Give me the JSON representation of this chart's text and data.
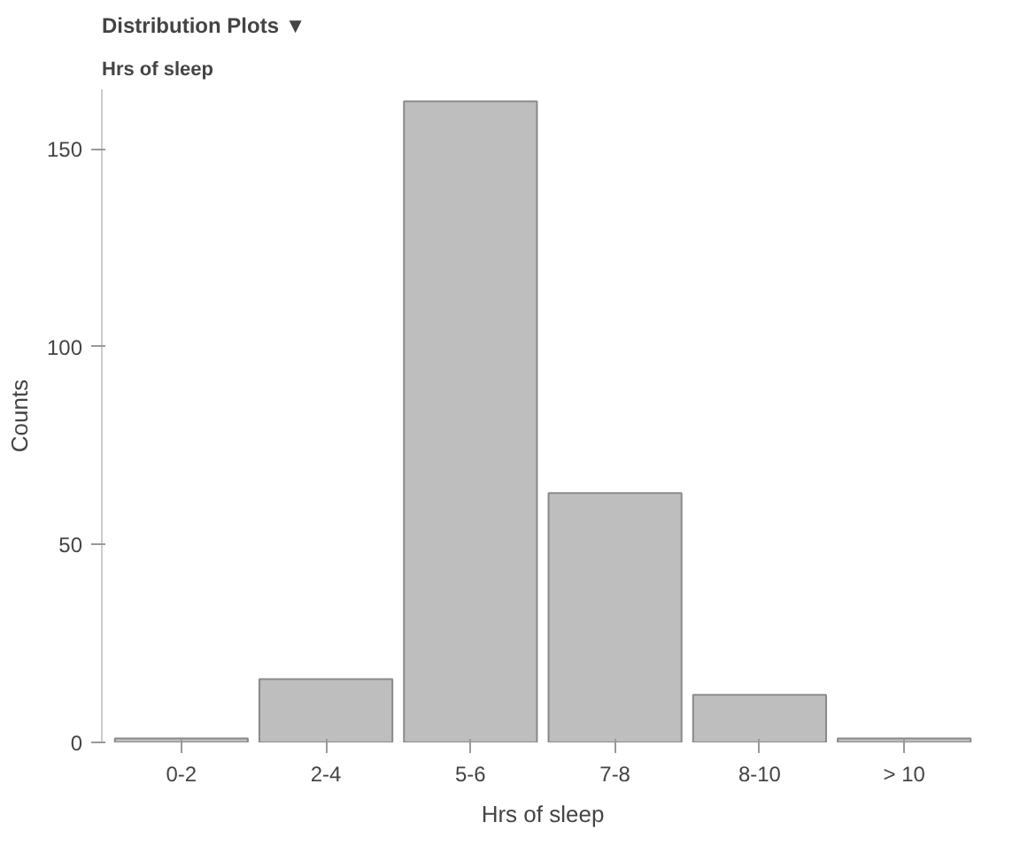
{
  "chart_data": {
    "type": "bar",
    "title": "Distribution Plots ▼",
    "subtitle": "Hrs of sleep",
    "xlabel": "Hrs of sleep",
    "ylabel": "Counts",
    "categories": [
      "0-2",
      "2-4",
      "5-6",
      "7-8",
      "8-10",
      "> 10"
    ],
    "values": [
      1,
      16,
      162,
      63,
      12,
      1
    ],
    "color": "#bebebe",
    "ylim": [
      0,
      165
    ],
    "yticks": [
      0,
      50,
      100,
      150
    ],
    "grid": false
  }
}
